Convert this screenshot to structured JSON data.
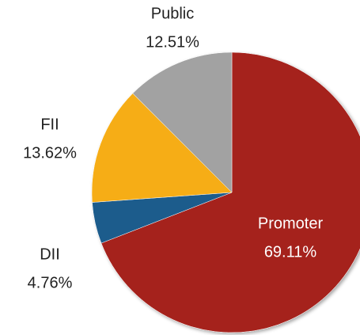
{
  "chart_data": {
    "type": "pie",
    "categories": [
      "Promoter",
      "DII",
      "FII",
      "Public"
    ],
    "values": [
      69.11,
      4.76,
      13.62,
      12.51
    ],
    "value_labels": [
      "69.11%",
      "4.76%",
      "13.62%",
      "12.51%"
    ],
    "colors": [
      "#a5231f",
      "#1f5b8c",
      "#f6ad15",
      "#a2a2a2"
    ]
  }
}
